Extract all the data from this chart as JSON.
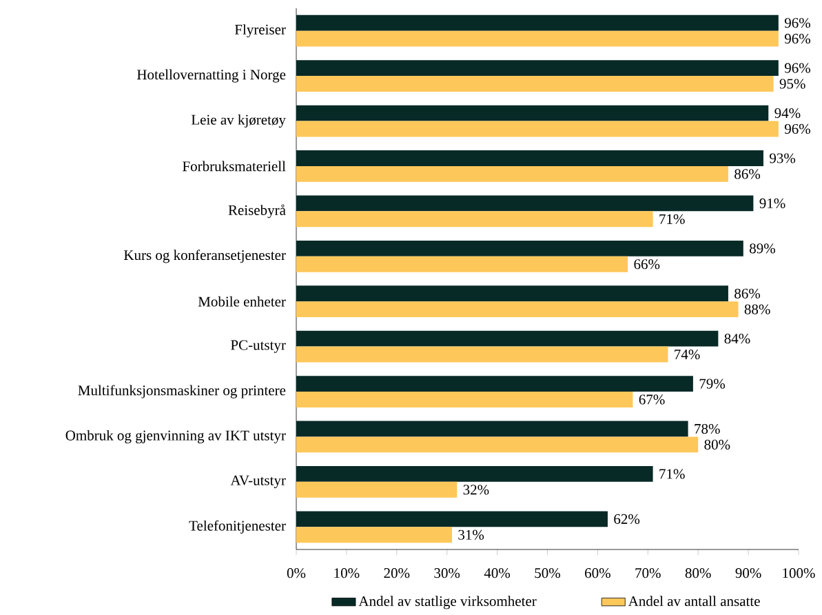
{
  "chart_data": {
    "type": "bar",
    "orientation": "horizontal",
    "categories": [
      "Flyreiser",
      "Hotellovernatting i Norge",
      "Leie av kjøretøy",
      "Forbruksmateriell",
      "Reisebyrå",
      "Kurs og konferansetjenester",
      "Mobile enheter",
      "PC-utstyr",
      "Multifunksjonsmaskiner og printere",
      "Ombruk og gjenvinning av IKT utstyr",
      "AV-utstyr",
      "Telefonitjenester"
    ],
    "series": [
      {
        "name": "Andel av statlige virksomheter",
        "color": "#082a27",
        "values": [
          96,
          96,
          94,
          93,
          91,
          89,
          86,
          84,
          79,
          78,
          71,
          62
        ],
        "value_labels": [
          "96%",
          "96%",
          "94%",
          "93%",
          "91%",
          "89%",
          "86%",
          "84%",
          "79%",
          "78%",
          "71%",
          "62%"
        ]
      },
      {
        "name": "Andel av antall ansatte",
        "color": "#fec75a",
        "values": [
          96,
          95,
          96,
          86,
          71,
          66,
          88,
          74,
          67,
          80,
          32,
          31
        ],
        "value_labels": [
          "96%",
          "95%",
          "96%",
          "86%",
          "71%",
          "66%",
          "88%",
          "74%",
          "67%",
          "80%",
          "32%",
          "31%"
        ]
      }
    ],
    "xlim": [
      0,
      100
    ],
    "xticks": [
      {
        "value": 0,
        "label": "0%"
      },
      {
        "value": 10,
        "label": "10%"
      },
      {
        "value": 20,
        "label": "20%"
      },
      {
        "value": 30,
        "label": "30%"
      },
      {
        "value": 40,
        "label": "40%"
      },
      {
        "value": 50,
        "label": "50%"
      },
      {
        "value": 60,
        "label": "60%"
      },
      {
        "value": 70,
        "label": "70%"
      },
      {
        "value": 80,
        "label": "80%"
      },
      {
        "value": 90,
        "label": "90%"
      },
      {
        "value": 100,
        "label": "100%"
      }
    ],
    "grid": false,
    "legend": "bottom"
  }
}
